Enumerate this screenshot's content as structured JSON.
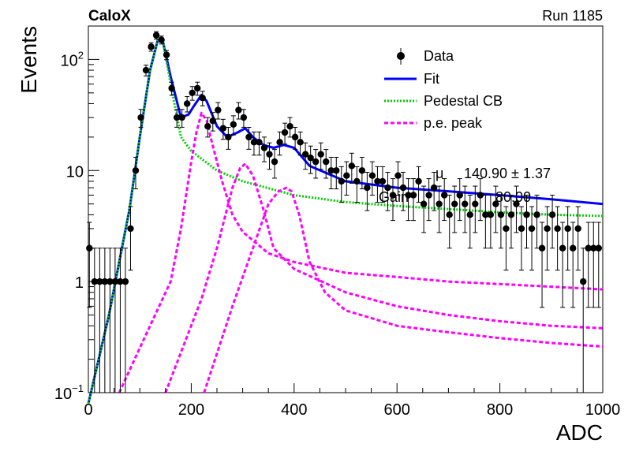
{
  "chart_data": {
    "type": "scatter",
    "title_left": "CaloX",
    "title_right": "Run 1185",
    "xlabel": "ADC",
    "ylabel": "Events",
    "xlim": [
      0,
      1000
    ],
    "ylim": [
      0.1,
      200
    ],
    "yscale": "log",
    "x_ticks": [
      {
        "v": 0,
        "label": "0"
      },
      {
        "v": 200,
        "label": "200"
      },
      {
        "v": 400,
        "label": "400"
      },
      {
        "v": 600,
        "label": "600"
      },
      {
        "v": 800,
        "label": "800"
      },
      {
        "v": 1000,
        "label": "1000"
      }
    ],
    "y_ticks": [
      {
        "v": 0.1,
        "label": "10",
        "sup": "−1"
      },
      {
        "v": 1,
        "label": "1"
      },
      {
        "v": 10,
        "label": "10"
      },
      {
        "v": 100,
        "label": "10",
        "sup": "2"
      }
    ],
    "legend": {
      "placement": "top-right",
      "entries": [
        {
          "label": "Data",
          "style": "marker"
        },
        {
          "label": "Fit",
          "style": "line"
        },
        {
          "label": "Pedestal CB",
          "style": "dotted"
        },
        {
          "label": "p.e. peak",
          "style": "dashed"
        }
      ]
    },
    "annotations": [
      "μ",
      "140.90 ± 1.37",
      "Gain",
      "80.00"
    ],
    "colors": {
      "data": "#000000",
      "fit": "#0000ff",
      "pedestal": "#00cc00",
      "pe_peak": "#ff00ff"
    },
    "series": [
      {
        "name": "Data",
        "x": [
          2,
          12,
          22,
          32,
          42,
          52,
          62,
          72,
          82,
          92,
          102,
          112,
          122,
          132,
          142,
          152,
          162,
          172,
          182,
          192,
          202,
          212,
          222,
          232,
          242,
          252,
          262,
          272,
          282,
          292,
          302,
          312,
          322,
          332,
          342,
          352,
          362,
          372,
          382,
          392,
          402,
          412,
          422,
          432,
          442,
          452,
          462,
          472,
          482,
          492,
          502,
          512,
          522,
          532,
          542,
          552,
          562,
          572,
          582,
          592,
          602,
          612,
          622,
          632,
          642,
          652,
          662,
          672,
          682,
          692,
          702,
          712,
          722,
          732,
          742,
          752,
          762,
          772,
          782,
          792,
          802,
          812,
          822,
          832,
          842,
          852,
          862,
          872,
          882,
          892,
          902,
          912,
          922,
          932,
          942,
          952,
          962,
          972,
          982,
          992
        ],
        "y": [
          2,
          1,
          1,
          1,
          1,
          1,
          1,
          1,
          3,
          10,
          30,
          80,
          130,
          165,
          150,
          110,
          55,
          30,
          30,
          40,
          50,
          55,
          45,
          25,
          28,
          35,
          24,
          20,
          26,
          35,
          30,
          20,
          18,
          18,
          16,
          14,
          12,
          18,
          22,
          25,
          20,
          18,
          14,
          13,
          12,
          14,
          12,
          10,
          10,
          8,
          9,
          11,
          8,
          10,
          7,
          9,
          8,
          8,
          7,
          6,
          9,
          7,
          6,
          6,
          8,
          5,
          6,
          7,
          5,
          6,
          4,
          5,
          6,
          5,
          4,
          5,
          6,
          4,
          4,
          5,
          4,
          3,
          4,
          5,
          3,
          4,
          3,
          4,
          2,
          3,
          4,
          3,
          2,
          3,
          2,
          3,
          1,
          2,
          2,
          2
        ]
      },
      {
        "name": "Fit",
        "x": [
          0,
          40,
          60,
          80,
          100,
          120,
          135,
          145,
          160,
          180,
          195,
          205,
          220,
          230,
          250,
          270,
          290,
          305,
          320,
          340,
          360,
          380,
          400,
          430,
          500,
          600,
          700,
          800,
          900,
          1000
        ],
        "y": [
          0.08,
          0.5,
          1.5,
          4.5,
          20,
          80,
          150,
          145,
          70,
          30,
          32,
          38,
          48,
          42,
          25,
          20,
          22,
          24,
          20,
          17,
          16,
          17,
          16,
          11,
          8,
          7,
          6.5,
          6,
          5.5,
          5
        ]
      },
      {
        "name": "Pedestal CB",
        "x": [
          0,
          40,
          60,
          80,
          100,
          120,
          135,
          145,
          160,
          180,
          200,
          250,
          300,
          400,
          500,
          600,
          700,
          800,
          900,
          1000
        ],
        "y": [
          0.08,
          0.5,
          1.5,
          4.5,
          20,
          80,
          150,
          145,
          60,
          20,
          15,
          10,
          8,
          6,
          5.2,
          4.8,
          4.5,
          4.2,
          4,
          3.9
        ]
      },
      {
        "name": "p.e. peak 1",
        "x": [
          60,
          120,
          160,
          180,
          200,
          210,
          220,
          230,
          240,
          260,
          280,
          300,
          350,
          400,
          500,
          600,
          700,
          800,
          900,
          1000
        ],
        "y": [
          0.1,
          0.4,
          1,
          3,
          12,
          22,
          33,
          28,
          18,
          8,
          4,
          2.8,
          1.8,
          1.5,
          1.2,
          1.1,
          1,
          0.95,
          0.9,
          0.85
        ]
      },
      {
        "name": "p.e. peak 2",
        "x": [
          150,
          220,
          250,
          280,
          295,
          305,
          320,
          340,
          360,
          400,
          500,
          600,
          700,
          800,
          900,
          1000
        ],
        "y": [
          0.1,
          0.7,
          2,
          7,
          10.5,
          11.5,
          9,
          4.5,
          2,
          1.3,
          0.8,
          0.6,
          0.5,
          0.44,
          0.4,
          0.38
        ]
      },
      {
        "name": "p.e. peak 3",
        "x": [
          225,
          280,
          320,
          350,
          370,
          385,
          395,
          410,
          430,
          460,
          500,
          600,
          700,
          800,
          900,
          1000
        ],
        "y": [
          0.1,
          0.6,
          2,
          5,
          6.5,
          7,
          6.5,
          4,
          1.5,
          0.8,
          0.55,
          0.4,
          0.35,
          0.31,
          0.28,
          0.26
        ]
      }
    ]
  }
}
